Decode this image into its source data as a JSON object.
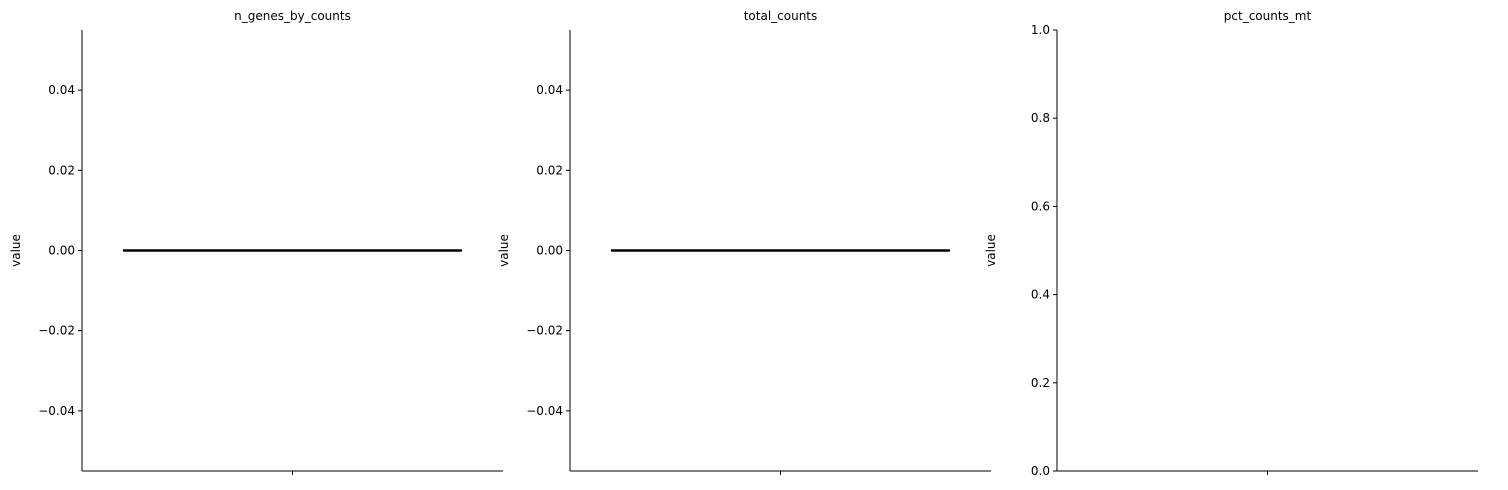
{
  "chart_data": [
    {
      "type": "violin",
      "title": "n_genes_by_counts",
      "ylabel": "value",
      "ylim": [
        -0.055,
        0.055
      ],
      "yticks": [
        -0.04,
        -0.02,
        0.0,
        0.02,
        0.04
      ],
      "ytick_labels": [
        "−0.04",
        "−0.02",
        "0.00",
        "0.02",
        "0.04"
      ],
      "categories": [
        ""
      ],
      "values": [
        0.0
      ],
      "grid": false
    },
    {
      "type": "violin",
      "title": "total_counts",
      "ylabel": "value",
      "ylim": [
        -0.055,
        0.055
      ],
      "yticks": [
        -0.04,
        -0.02,
        0.0,
        0.02,
        0.04
      ],
      "ytick_labels": [
        "−0.04",
        "−0.02",
        "0.00",
        "0.02",
        "0.04"
      ],
      "categories": [
        ""
      ],
      "values": [
        0.0
      ],
      "grid": false
    },
    {
      "type": "violin",
      "title": "pct_counts_mt",
      "ylabel": "value",
      "ylim": [
        0,
        1
      ],
      "yticks": [
        0.0,
        0.2,
        0.4,
        0.6,
        0.8,
        1.0
      ],
      "ytick_labels": [
        "0.0",
        "0.2",
        "0.4",
        "0.6",
        "0.8",
        "1.0"
      ],
      "categories": [
        ""
      ],
      "values": [],
      "grid": false
    }
  ]
}
